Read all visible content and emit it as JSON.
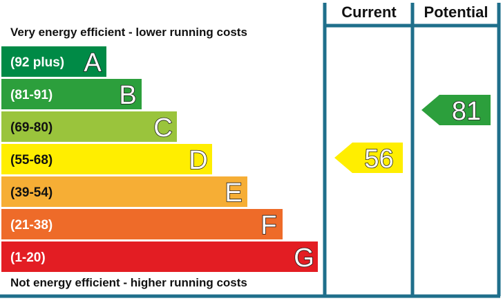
{
  "header": {
    "current_label": "Current",
    "potential_label": "Potential"
  },
  "top_caption": "Very energy efficient - lower running costs",
  "bottom_caption": "Not energy efficient - higher running costs",
  "colors": {
    "frame": "#1f6f8b",
    "text": "#111111",
    "band_A": "#008a46",
    "band_B": "#2c9f3c",
    "band_C": "#9ac43c",
    "band_D": "#ffee00",
    "band_E": "#f6ae35",
    "band_F": "#ee6b29",
    "band_G": "#e31d23"
  },
  "chart_data": {
    "type": "bar",
    "categories": [
      "A",
      "B",
      "C",
      "D",
      "E",
      "F",
      "G"
    ],
    "ranges": [
      "(92 plus)",
      "(81-91)",
      "(69-80)",
      "(55-68)",
      "(39-54)",
      "(21-38)",
      "(1-20)"
    ],
    "band_colors": [
      "#008a46",
      "#2c9f3c",
      "#9ac43c",
      "#ffee00",
      "#f6ae35",
      "#ee6b29",
      "#e31d23"
    ],
    "current": {
      "value": 56,
      "band": "D"
    },
    "potential": {
      "value": 81,
      "band": "B"
    }
  }
}
